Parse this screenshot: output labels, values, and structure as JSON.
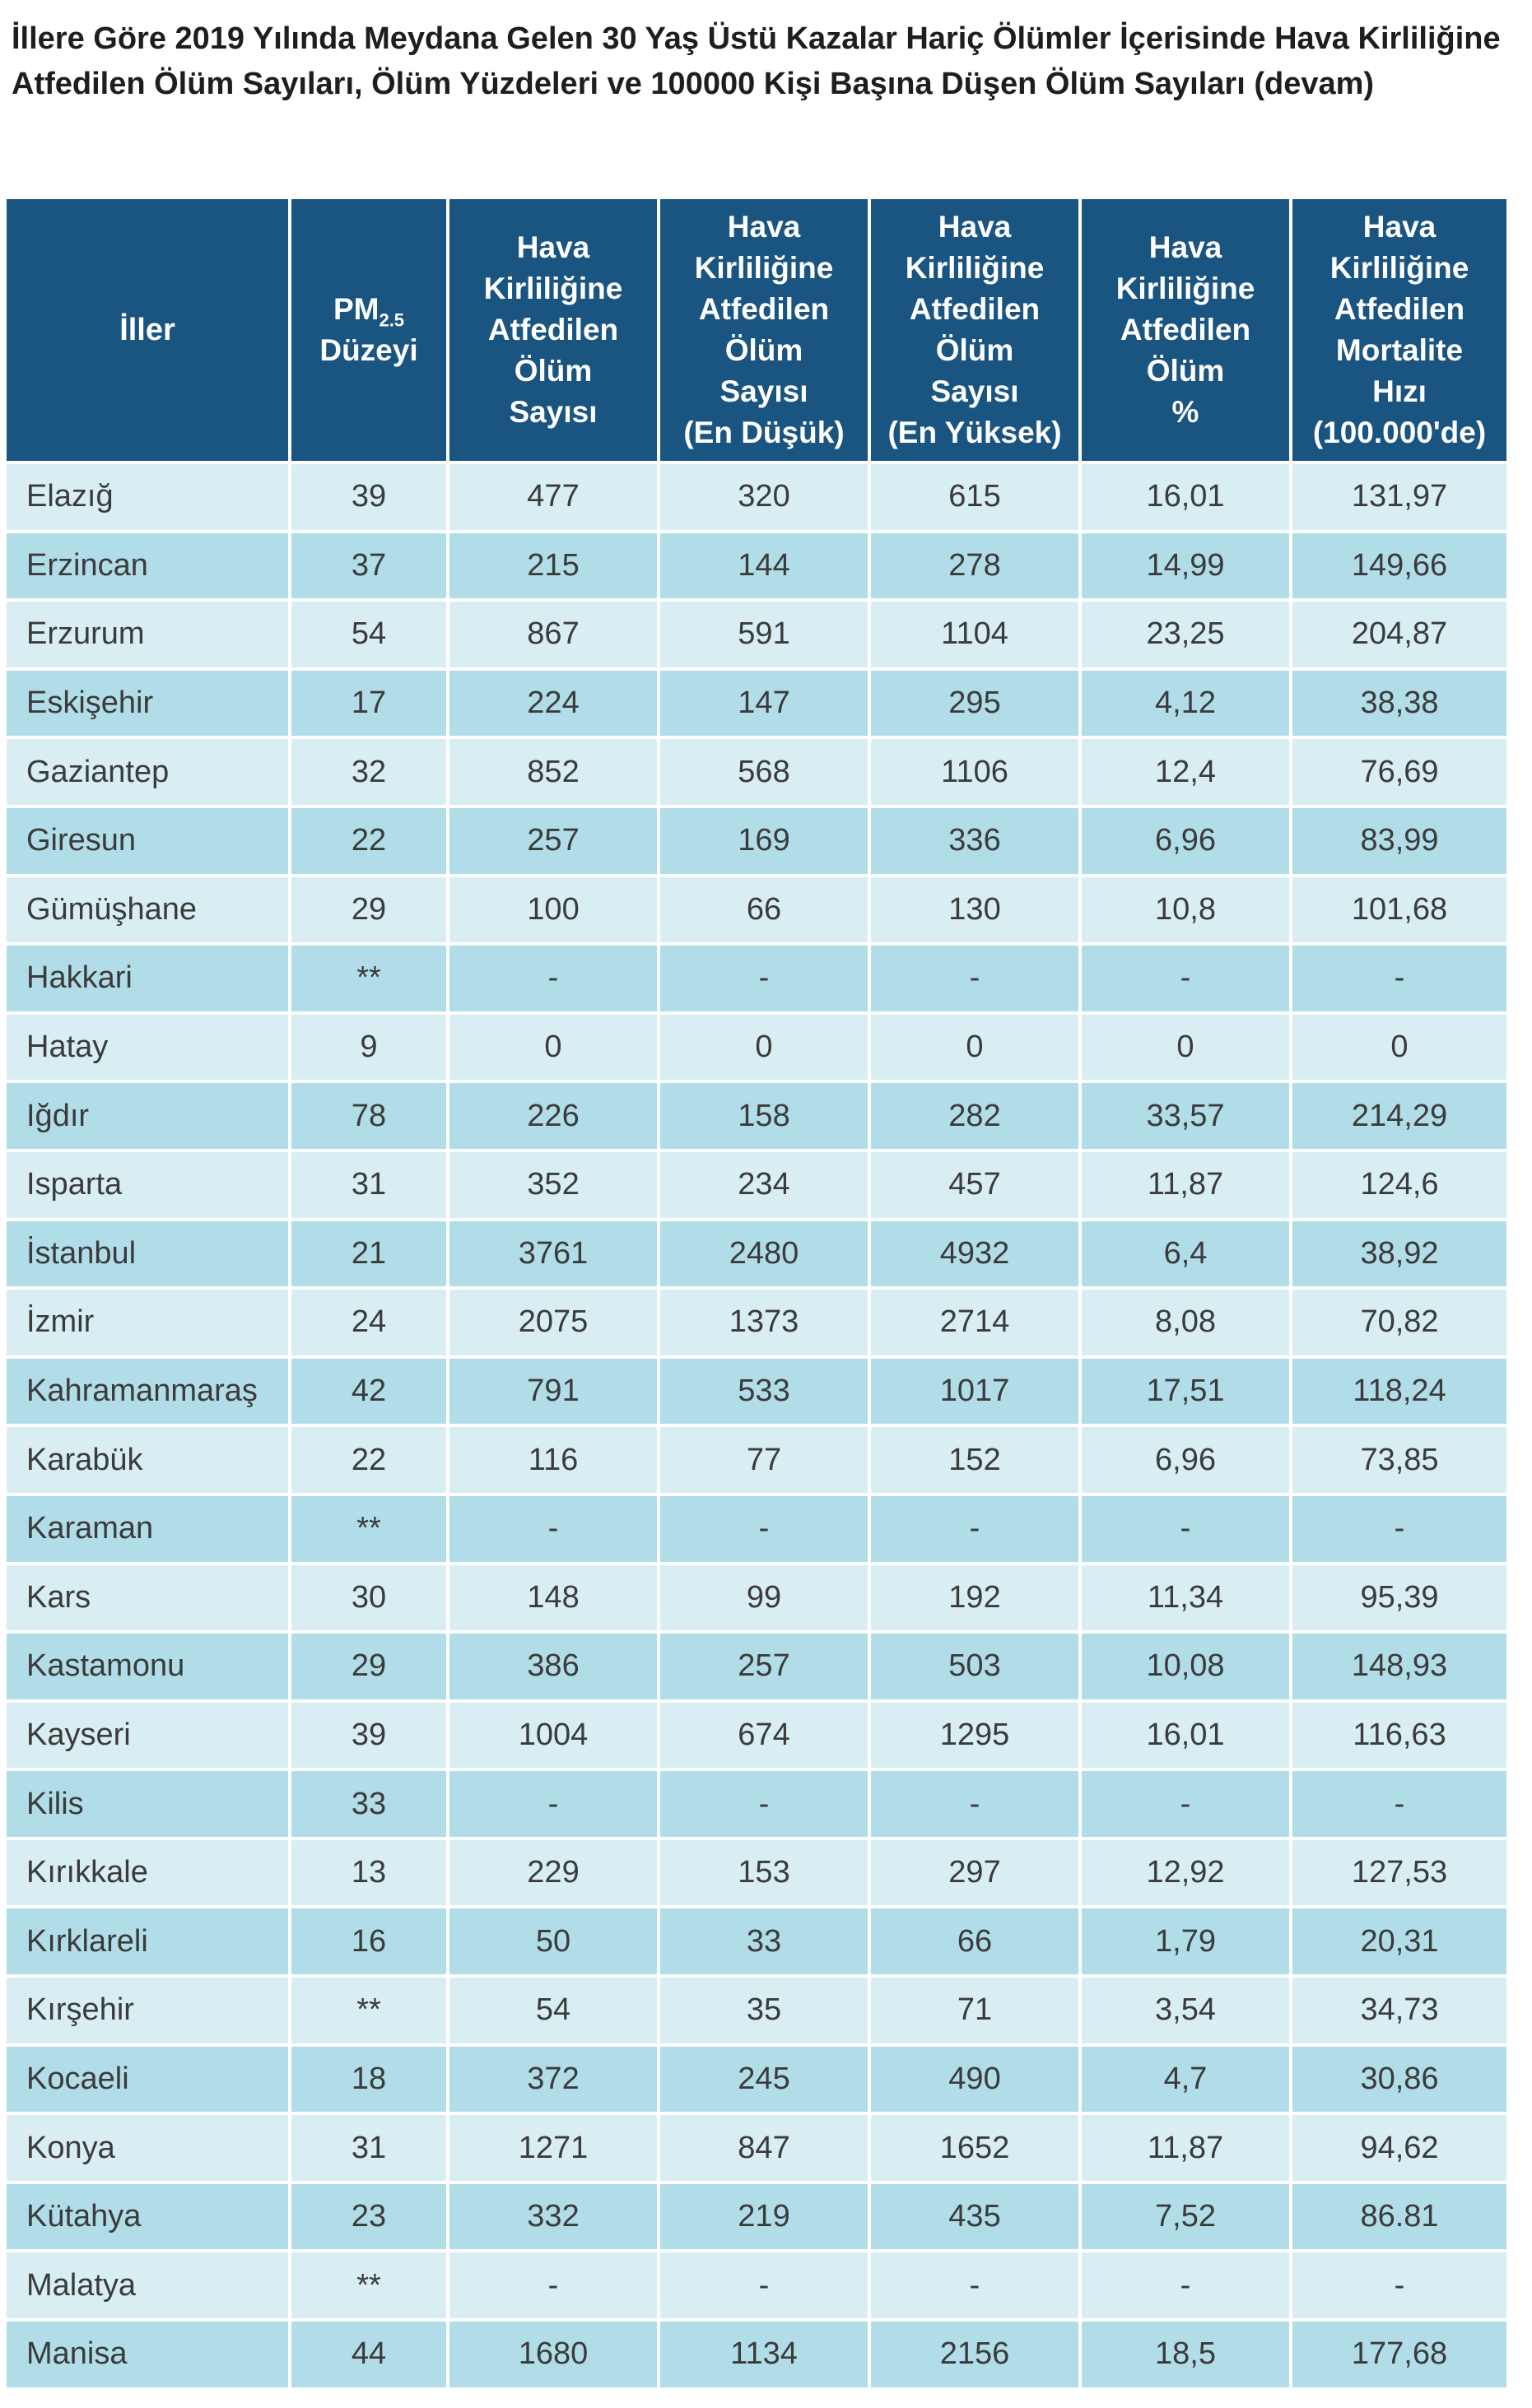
{
  "title": "İllere Göre 2019 Yılında Meydana Gelen 30 Yaş Üstü Kazalar Hariç Ölümler İçerisinde Hava Kirliliğine Atfedilen Ölüm Sayıları, Ölüm Yüzdeleri ve 100000 Kişi Başına Düşen Ölüm Sayıları (devam)",
  "headers": {
    "province": "İller",
    "pm_main": "PM",
    "pm_sub": "2.5",
    "pm_level": "Düzeyi",
    "c3_l1": "Hava",
    "c3_l2": "Kirliliğine",
    "c3_l3": "Atfedilen",
    "c3_l4": "Ölüm",
    "c3_l5": "Sayısı",
    "c4_l1": "Hava",
    "c4_l2": "Kirliliğine",
    "c4_l3": "Atfedilen",
    "c4_l4": "Ölüm",
    "c4_l5": "Sayısı",
    "c4_l6": "(En Düşük)",
    "c5_l1": "Hava",
    "c5_l2": "Kirliliğine",
    "c5_l3": "Atfedilen",
    "c5_l4": "Ölüm",
    "c5_l5": "Sayısı",
    "c5_l6": "(En Yüksek)",
    "c6_l1": "Hava",
    "c6_l2": "Kirliliğine",
    "c6_l3": "Atfedilen",
    "c6_l4": "Ölüm",
    "c6_l5": "%",
    "c7_l1": "Hava",
    "c7_l2": "Kirliliğine",
    "c7_l3": "Atfedilen",
    "c7_l4": "Mortalite",
    "c7_l5": "Hızı",
    "c7_l6": "(100.000'de)"
  },
  "rows": [
    [
      "Elazığ",
      "39",
      "477",
      "320",
      "615",
      "16,01",
      "131,97"
    ],
    [
      "Erzincan",
      "37",
      "215",
      "144",
      "278",
      "14,99",
      "149,66"
    ],
    [
      "Erzurum",
      "54",
      "867",
      "591",
      "1104",
      "23,25",
      "204,87"
    ],
    [
      "Eskişehir",
      "17",
      "224",
      "147",
      "295",
      "4,12",
      "38,38"
    ],
    [
      "Gaziantep",
      "32",
      "852",
      "568",
      "1106",
      "12,4",
      "76,69"
    ],
    [
      "Giresun",
      "22",
      "257",
      "169",
      "336",
      "6,96",
      "83,99"
    ],
    [
      "Gümüşhane",
      "29",
      "100",
      "66",
      "130",
      "10,8",
      "101,68"
    ],
    [
      "Hakkari",
      "**",
      "-",
      "-",
      "-",
      "-",
      "-"
    ],
    [
      "Hatay",
      "9",
      "0",
      "0",
      "0",
      "0",
      "0"
    ],
    [
      "Iğdır",
      "78",
      "226",
      "158",
      "282",
      "33,57",
      "214,29"
    ],
    [
      "Isparta",
      "31",
      "352",
      "234",
      "457",
      "11,87",
      "124,6"
    ],
    [
      "İstanbul",
      "21",
      "3761",
      "2480",
      "4932",
      "6,4",
      "38,92"
    ],
    [
      "İzmir",
      "24",
      "2075",
      "1373",
      "2714",
      "8,08",
      "70,82"
    ],
    [
      "Kahramanmaraş",
      "42",
      "791",
      "533",
      "1017",
      "17,51",
      "118,24"
    ],
    [
      "Karabük",
      "22",
      "116",
      "77",
      "152",
      "6,96",
      "73,85"
    ],
    [
      "Karaman",
      "**",
      "-",
      "-",
      "-",
      "-",
      "-"
    ],
    [
      "Kars",
      "30",
      "148",
      "99",
      "192",
      "11,34",
      "95,39"
    ],
    [
      "Kastamonu",
      "29",
      "386",
      "257",
      "503",
      "10,08",
      "148,93"
    ],
    [
      "Kayseri",
      "39",
      "1004",
      "674",
      "1295",
      "16,01",
      "116,63"
    ],
    [
      "Kilis",
      "33",
      "-",
      "-",
      "-",
      "-",
      "-"
    ],
    [
      "Kırıkkale",
      "13",
      "229",
      "153",
      "297",
      "12,92",
      "127,53"
    ],
    [
      "Kırklareli",
      "16",
      "50",
      "33",
      "66",
      "1,79",
      "20,31"
    ],
    [
      "Kırşehir",
      "**",
      "54",
      "35",
      "71",
      "3,54",
      "34,73"
    ],
    [
      "Kocaeli",
      "18",
      "372",
      "245",
      "490",
      "4,7",
      "30,86"
    ],
    [
      "Konya",
      "31",
      "1271",
      "847",
      "1652",
      "11,87",
      "94,62"
    ],
    [
      "Kütahya",
      "23",
      "332",
      "219",
      "435",
      "7,52",
      "86.81"
    ],
    [
      "Malatya",
      "**",
      "-",
      "-",
      "-",
      "-",
      "-"
    ],
    [
      "Manisa",
      "44",
      "1680",
      "1134",
      "2156",
      "18,5",
      "177,68"
    ]
  ]
}
